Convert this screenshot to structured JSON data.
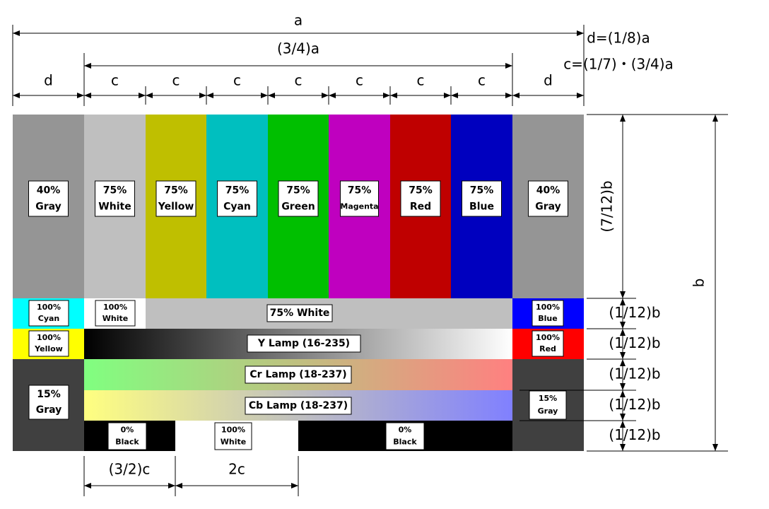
{
  "dimensions": {
    "width": "a",
    "three_quarter_width": "(3/4)a",
    "columns": [
      "d",
      "c",
      "c",
      "c",
      "c",
      "c",
      "c",
      "c",
      "d"
    ],
    "formulas": [
      "d=(1/8)a",
      "c=(1/7)・(3/4)a"
    ],
    "upper_height": "(7/12)b",
    "height": "b",
    "row_heights": [
      "(1/12)b",
      "(1/12)b",
      "(1/12)b",
      "(1/12)b",
      "(1/12)b"
    ],
    "bottom": [
      "(3/2)c",
      "2c"
    ]
  },
  "labels": {
    "top": [
      [
        "40%",
        "Gray"
      ],
      [
        "75%",
        "White"
      ],
      [
        "75%",
        "Yellow"
      ],
      [
        "75%",
        "Cyan"
      ],
      [
        "75%",
        "Green"
      ],
      [
        "75%",
        "Magenta"
      ],
      [
        "75%",
        "Red"
      ],
      [
        "75%",
        "Blue"
      ],
      [
        "40%",
        "Gray"
      ]
    ],
    "row2": [
      [
        "100%",
        "Cyan"
      ],
      [
        "100%",
        "White"
      ],
      [
        "75% White"
      ],
      [
        "100%",
        "Blue"
      ]
    ],
    "row3": [
      [
        "100%",
        "Yellow"
      ],
      [
        "Y Lamp (16-235)"
      ],
      [
        "100%",
        "Red"
      ]
    ],
    "row45": [
      [
        "15%",
        "Gray"
      ],
      [
        "Cr Lamp (18-237)"
      ],
      [
        "Cb Lamp (18-237)"
      ],
      [
        "15%",
        "Gray"
      ]
    ],
    "row6": [
      [
        "0%",
        "Black"
      ],
      [
        "100%",
        "White"
      ],
      [
        "0%",
        "Black"
      ]
    ]
  }
}
